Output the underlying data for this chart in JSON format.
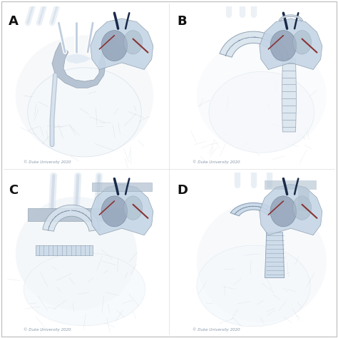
{
  "figure_width": 4.74,
  "figure_height": 4.74,
  "dpi": 100,
  "background_color": "#ffffff",
  "border_color": "#bbbbbb",
  "panel_labels": [
    "A",
    "B",
    "C",
    "D"
  ],
  "panel_label_fontsize": 13,
  "panel_label_color": "#111111",
  "copyright_text": "© Duke University 2020",
  "copyright_fontsize": 4.0,
  "copyright_color": "#8899aa",
  "outer_border": true,
  "aorta_gray": "#9aaabb",
  "aorta_light": "#c8d8e8",
  "aorta_white": "#eef2f6",
  "vessel_line": "#8899bb",
  "graft_fill": "#d0dce8",
  "graft_edge": "#7a8fa8",
  "stitch_color": "#6a7f98",
  "heart_bg": "#dde8f0",
  "heart_border": "#8899aa",
  "heart_body": "#c5d5e5",
  "heart_dark_vessel": "#1a2a4a",
  "heart_red_vessel": "#883333",
  "heart_chamber_l": "#cc3344",
  "heart_chamber_r": "#aabbcc"
}
